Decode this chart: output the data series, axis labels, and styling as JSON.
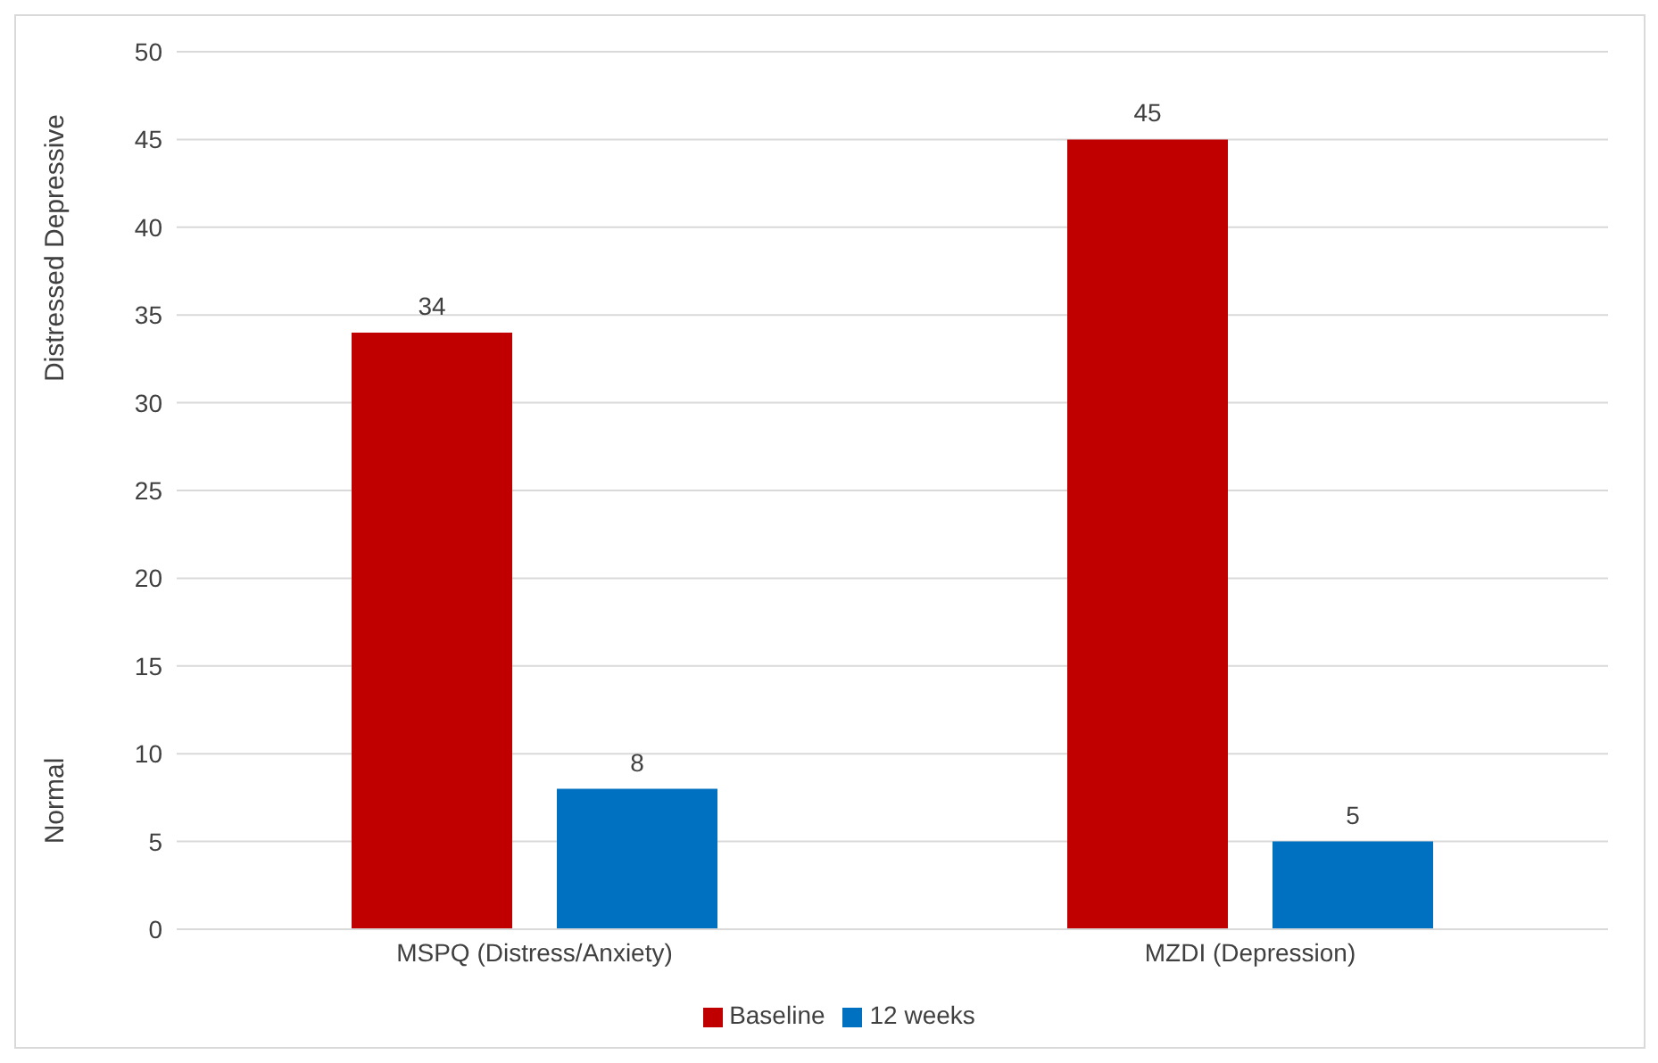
{
  "chart_data": {
    "type": "bar",
    "categories": [
      "MSPQ (Distress/Anxiety)",
      "MZDI (Depression)"
    ],
    "series": [
      {
        "name": "Baseline",
        "color": "#c00000",
        "values": [
          34,
          45
        ]
      },
      {
        "name": "12 weeks",
        "color": "#0070c0",
        "values": [
          8,
          5
        ]
      }
    ],
    "ylabel": "Distressed Depressive",
    "annotations": [
      "Normal"
    ],
    "ylim": [
      0,
      50
    ],
    "yticks": [
      0,
      5,
      10,
      15,
      20,
      25,
      30,
      35,
      40,
      45,
      50
    ],
    "grid": "y",
    "legend": "bottom",
    "data_labels": true
  }
}
